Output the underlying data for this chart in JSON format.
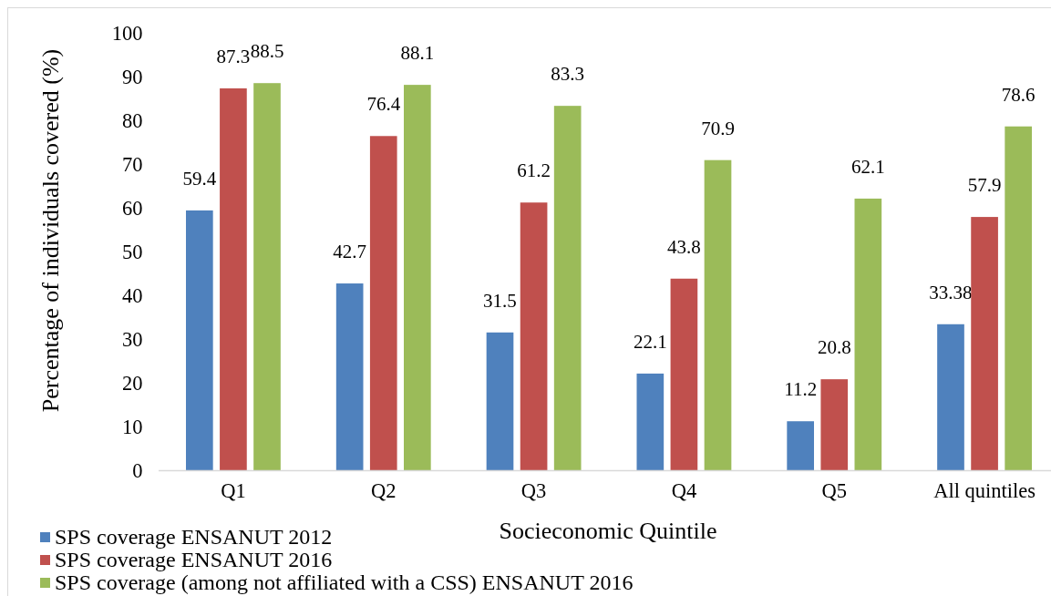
{
  "chart_data": {
    "type": "bar",
    "xlabel": "Socieconomic Quintile",
    "ylabel": "Percentage of individuals covered (%)",
    "categories": [
      "Q1",
      "Q2",
      "Q3",
      "Q4",
      "Q5",
      "All quintiles"
    ],
    "series": [
      {
        "name": "SPS coverage ENSANUT 2012",
        "color": "#4f81bd",
        "values": [
          59.4,
          42.7,
          31.5,
          22.1,
          11.2,
          33.38
        ]
      },
      {
        "name": "SPS coverage ENSANUT 2016",
        "color": "#c0504d",
        "values": [
          87.3,
          76.4,
          61.2,
          43.8,
          20.8,
          57.9
        ]
      },
      {
        "name": "SPS coverage (among not affiliated with a CSS) ENSANUT 2016",
        "color": "#9bbb59",
        "values": [
          88.5,
          88.1,
          83.3,
          70.9,
          62.1,
          78.6
        ]
      }
    ],
    "ylim": [
      0,
      100
    ],
    "yticks": [
      0,
      10,
      20,
      30,
      40,
      50,
      60,
      70,
      80,
      90,
      100
    ],
    "data_labels": true,
    "grid": false,
    "legend": "bottom left"
  }
}
